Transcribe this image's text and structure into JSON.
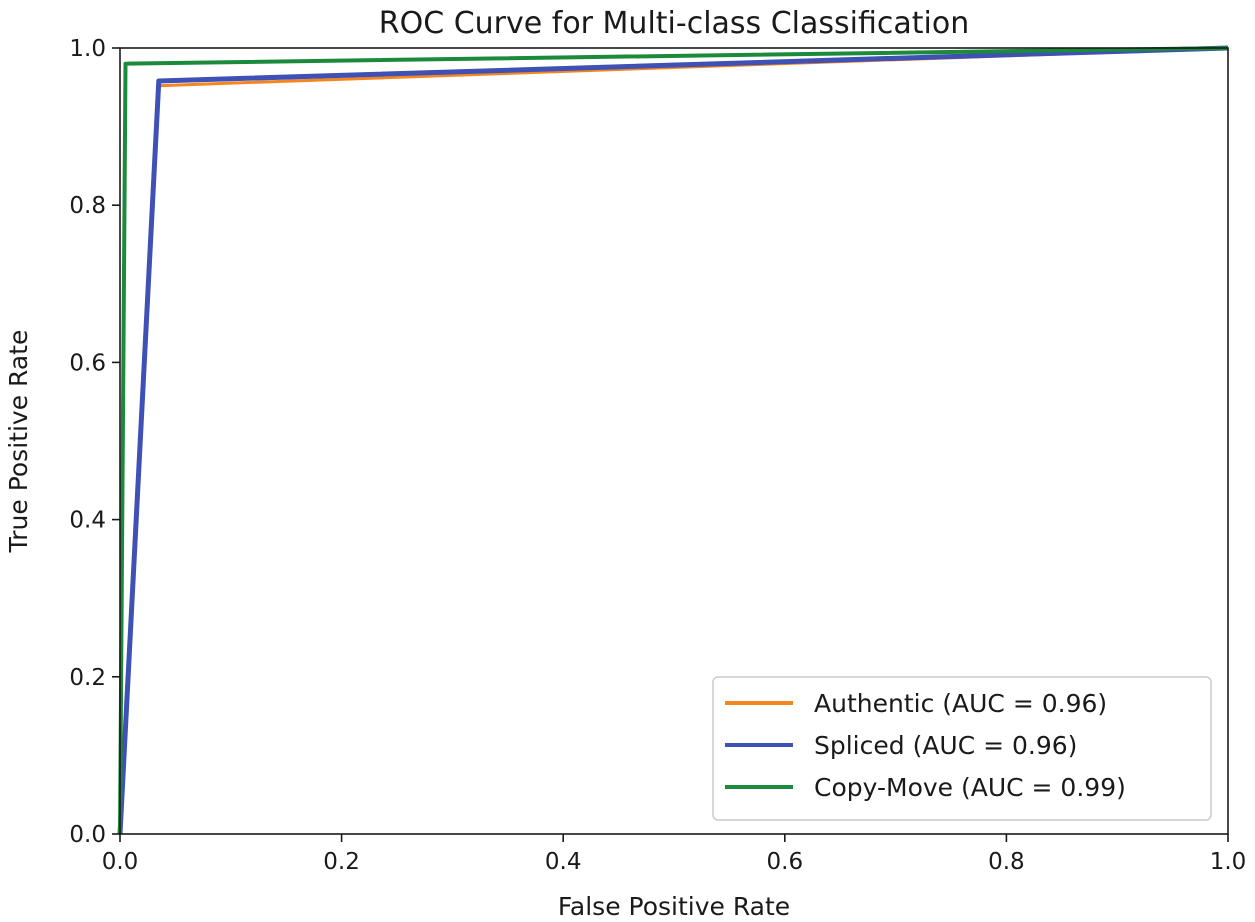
{
  "chart_data": {
    "type": "line",
    "title": "ROC Curve for Multi-class Classification",
    "xlabel": "False Positive Rate",
    "ylabel": "True Positive Rate",
    "xlim": [
      0.0,
      1.0
    ],
    "ylim": [
      0.0,
      1.0
    ],
    "xticks": [
      "0.0",
      "0.2",
      "0.4",
      "0.6",
      "0.8",
      "1.0"
    ],
    "yticks": [
      "0.0",
      "0.2",
      "0.4",
      "0.6",
      "0.8",
      "1.0"
    ],
    "legend_position": "lower-right",
    "grid": false,
    "series": [
      {
        "name": "Authentic (AUC = 0.96)",
        "color": "#f5861f",
        "x": [
          0.0,
          0.035,
          1.0
        ],
        "y": [
          0.0,
          0.952,
          1.0
        ]
      },
      {
        "name": "Spliced (AUC = 0.96)",
        "color": "#3f51b5",
        "x": [
          0.0,
          0.035,
          1.0
        ],
        "y": [
          0.0,
          0.958,
          1.0
        ]
      },
      {
        "name": "Copy-Move (AUC = 0.99)",
        "color": "#1b8a3a",
        "x": [
          0.0,
          0.005,
          1.0
        ],
        "y": [
          0.0,
          0.98,
          1.0
        ]
      }
    ]
  }
}
